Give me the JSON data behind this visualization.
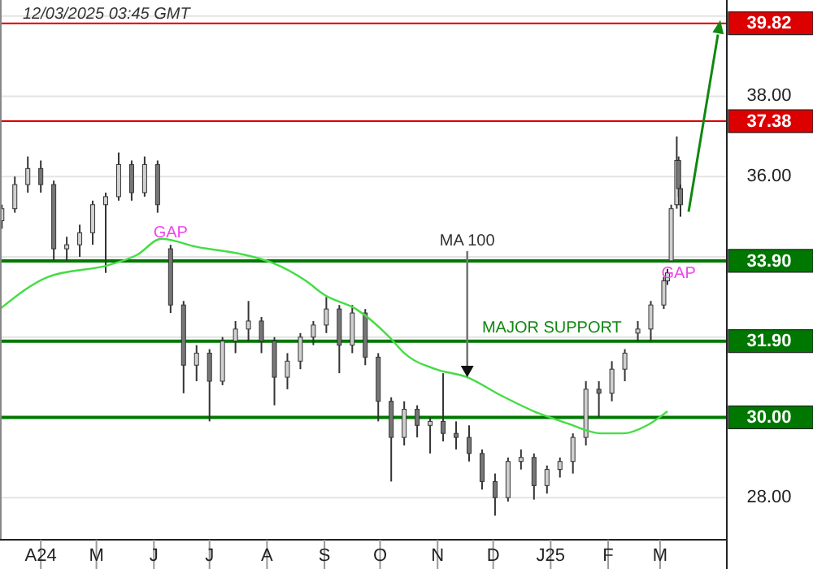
{
  "chart_data": {
    "type": "candlestick",
    "title": "12/03/2025 03:45 GMT",
    "xlim": [
      "2024-03-10",
      "2025-04-06"
    ],
    "xticks": [
      {
        "value": "2024-04-01",
        "label": "A24"
      },
      {
        "value": "2024-05-01",
        "label": "M"
      },
      {
        "value": "2024-06-01",
        "label": "J"
      },
      {
        "value": "2024-07-01",
        "label": "J"
      },
      {
        "value": "2024-08-01",
        "label": "A"
      },
      {
        "value": "2024-09-01",
        "label": "S"
      },
      {
        "value": "2024-10-01",
        "label": "O"
      },
      {
        "value": "2024-11-01",
        "label": "N"
      },
      {
        "value": "2024-12-01",
        "label": "D"
      },
      {
        "value": "2025-01-01",
        "label": "J25"
      },
      {
        "value": "2025-02-01",
        "label": "F"
      },
      {
        "value": "2025-03-01",
        "label": "M"
      }
    ],
    "ylim": [
      26.95,
      40.4
    ],
    "yticks": [
      {
        "value": 28,
        "label": "28.00"
      },
      {
        "value": 30,
        "label": null
      },
      {
        "value": 32,
        "label": null
      },
      {
        "value": 34,
        "label": null
      },
      {
        "value": 36,
        "label": "36.00"
      },
      {
        "value": 38,
        "label": "38.00"
      },
      {
        "value": 40,
        "label": null
      }
    ],
    "grid": "y",
    "series": [
      {
        "type": "candlestick",
        "color": "#333333",
        "x": [
          "2024-03-11",
          "2024-03-18",
          "2024-03-25",
          "2024-04-01",
          "2024-04-08",
          "2024-04-15",
          "2024-04-22",
          "2024-04-29",
          "2024-05-06",
          "2024-05-13",
          "2024-05-20",
          "2024-05-27",
          "2024-06-03",
          "2024-06-10",
          "2024-06-17",
          "2024-06-24",
          "2024-07-01",
          "2024-07-08",
          "2024-07-15",
          "2024-07-22",
          "2024-07-29",
          "2024-08-05",
          "2024-08-12",
          "2024-08-19",
          "2024-08-26",
          "2024-09-02",
          "2024-09-09",
          "2024-09-16",
          "2024-09-23",
          "2024-09-30",
          "2024-10-07",
          "2024-10-14",
          "2024-10-21",
          "2024-10-28",
          "2024-11-04",
          "2024-11-11",
          "2024-11-18",
          "2024-11-25",
          "2024-12-02",
          "2024-12-09",
          "2024-12-16",
          "2024-12-23",
          "2024-12-30",
          "2025-01-06",
          "2025-01-13",
          "2025-01-20",
          "2025-01-27",
          "2025-02-03",
          "2025-02-10",
          "2025-02-17",
          "2025-02-24",
          "2025-03-03",
          "2025-03-05",
          "2025-03-07",
          "2025-03-10",
          "2025-03-11",
          "2025-03-12"
        ],
        "ohlc": [
          [
            34.9,
            35.3,
            34.7,
            35.2
          ],
          [
            35.2,
            36.0,
            35.1,
            35.8
          ],
          [
            35.8,
            36.5,
            35.6,
            36.2
          ],
          [
            36.2,
            36.4,
            35.6,
            35.8
          ],
          [
            35.8,
            35.9,
            33.9,
            34.2
          ],
          [
            34.2,
            34.5,
            33.9,
            34.3
          ],
          [
            34.3,
            34.8,
            34.0,
            34.6
          ],
          [
            34.6,
            35.4,
            34.3,
            35.3
          ],
          [
            35.3,
            35.6,
            33.6,
            35.5
          ],
          [
            35.5,
            36.6,
            35.4,
            36.3
          ],
          [
            36.3,
            36.4,
            35.4,
            35.6
          ],
          [
            35.6,
            36.5,
            35.5,
            36.3
          ],
          [
            36.3,
            36.4,
            35.1,
            35.3
          ],
          [
            34.2,
            34.3,
            32.6,
            32.8
          ],
          [
            32.8,
            32.9,
            30.6,
            31.3
          ],
          [
            31.3,
            31.8,
            30.9,
            31.6
          ],
          [
            31.6,
            31.7,
            29.9,
            30.9
          ],
          [
            30.9,
            32.0,
            30.8,
            31.9
          ],
          [
            31.9,
            32.4,
            31.6,
            32.2
          ],
          [
            32.2,
            32.9,
            31.9,
            32.4
          ],
          [
            32.4,
            32.5,
            31.6,
            31.9
          ],
          [
            31.9,
            32.0,
            30.3,
            31.0
          ],
          [
            31.0,
            31.6,
            30.7,
            31.4
          ],
          [
            31.4,
            32.1,
            31.2,
            32.0
          ],
          [
            32.0,
            32.4,
            31.8,
            32.3
          ],
          [
            32.3,
            33.0,
            32.1,
            32.7
          ],
          [
            32.7,
            32.8,
            31.1,
            31.8
          ],
          [
            31.8,
            32.8,
            31.6,
            32.6
          ],
          [
            32.6,
            32.7,
            31.3,
            31.5
          ],
          [
            31.5,
            31.6,
            29.9,
            30.4
          ],
          [
            30.4,
            30.5,
            28.4,
            29.5
          ],
          [
            29.5,
            30.4,
            29.3,
            30.2
          ],
          [
            30.2,
            30.3,
            29.5,
            29.8
          ],
          [
            29.8,
            30.0,
            29.1,
            29.9
          ],
          [
            29.9,
            31.1,
            29.4,
            29.6
          ],
          [
            29.6,
            29.9,
            29.2,
            29.5
          ],
          [
            29.5,
            29.8,
            28.9,
            29.1
          ],
          [
            29.1,
            29.2,
            28.2,
            28.4
          ],
          [
            28.4,
            28.6,
            27.55,
            28.0
          ],
          [
            28.0,
            29.0,
            27.9,
            28.9
          ],
          [
            28.9,
            29.2,
            28.7,
            29.0
          ],
          [
            29.0,
            29.1,
            27.95,
            28.3
          ],
          [
            28.3,
            28.8,
            28.1,
            28.7
          ],
          [
            28.7,
            29.0,
            28.5,
            28.9
          ],
          [
            28.9,
            29.6,
            28.6,
            29.5
          ],
          [
            29.5,
            30.9,
            29.3,
            30.7
          ],
          [
            30.7,
            30.9,
            30.0,
            30.6
          ],
          [
            30.6,
            31.4,
            30.4,
            31.2
          ],
          [
            31.2,
            31.7,
            30.9,
            31.6
          ],
          [
            32.1,
            32.4,
            31.9,
            32.2
          ],
          [
            32.2,
            32.9,
            31.9,
            32.8
          ],
          [
            32.8,
            33.5,
            32.7,
            33.4
          ],
          [
            33.4,
            33.7,
            33.3,
            33.6
          ],
          [
            33.9,
            35.3,
            33.9,
            35.2
          ],
          [
            35.3,
            37.0,
            35.2,
            36.4
          ],
          [
            36.4,
            36.5,
            35.5,
            35.7
          ],
          [
            35.7,
            35.8,
            35.0,
            35.3
          ]
        ]
      },
      {
        "type": "line",
        "color": "#44dd44",
        "x": [
          "2024-03-10",
          "2024-04-05",
          "2024-05-08",
          "2024-05-23",
          "2024-06-05",
          "2024-06-24",
          "2024-07-20",
          "2024-08-04",
          "2024-08-22",
          "2024-09-01",
          "2024-09-18",
          "2024-10-06",
          "2024-10-14",
          "2024-10-31",
          "2024-11-17",
          "2024-12-05",
          "2024-12-23",
          "2025-01-10",
          "2025-01-28",
          "2025-02-09",
          "2025-02-22",
          "2025-03-05"
        ],
        "values": [
          32.7,
          33.5,
          33.8,
          34.05,
          34.45,
          34.25,
          34.05,
          33.85,
          33.4,
          33.05,
          32.7,
          32.0,
          31.6,
          31.2,
          31.0,
          30.55,
          30.15,
          29.85,
          29.6,
          29.6,
          29.8,
          30.15
        ]
      }
    ],
    "ref_lines": [
      {
        "axis": "y",
        "value": 39.82,
        "label": "39.82",
        "color": "#dd0000"
      },
      {
        "axis": "y",
        "value": 37.38,
        "label": "37.38",
        "color": "#dd0000"
      },
      {
        "axis": "y",
        "value": 33.9,
        "label": "33.90",
        "color": "#007700"
      },
      {
        "axis": "y",
        "value": 31.9,
        "label": "31.90",
        "color": "#007700"
      },
      {
        "axis": "y",
        "value": 30.0,
        "label": "30.00",
        "color": "#007700"
      }
    ],
    "annotations": [
      {
        "text": "GAP",
        "x": "2024-06-10",
        "y": 34.3
      },
      {
        "text": "GAP",
        "x": "2025-03-11",
        "y": 33.9
      },
      {
        "text": "MA 100",
        "x": "2024-11-17",
        "y": 34.1
      },
      {
        "text": "MAJOR SUPPORT",
        "x": "2024-11-25",
        "y": 31.9
      }
    ]
  }
}
